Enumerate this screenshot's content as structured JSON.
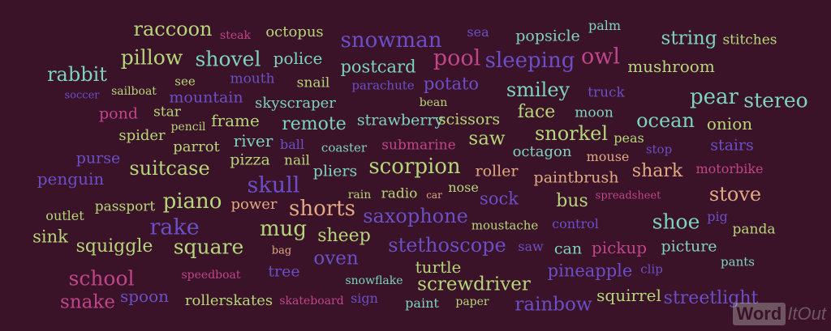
{
  "colors": {
    "background": "#3a1328",
    "green": "#b5d67a",
    "teal": "#7dd3c0",
    "purple": "#6a4fc7",
    "magenta": "#c0458a",
    "peach": "#e0a983"
  },
  "logo": {
    "part1": "Word",
    "part2": "ItOut"
  },
  "words": [
    {
      "t": "raccoon",
      "c": "green"
    },
    {
      "t": "steak",
      "c": "magenta"
    },
    {
      "t": "octopus",
      "c": "green"
    },
    {
      "t": "snowman",
      "c": "purple"
    },
    {
      "t": "sea",
      "c": "purple"
    },
    {
      "t": "popsicle",
      "c": "teal"
    },
    {
      "t": "palm",
      "c": "teal"
    },
    {
      "t": "string",
      "c": "teal"
    },
    {
      "t": "stitches",
      "c": "green"
    },
    {
      "t": "pillow",
      "c": "green"
    },
    {
      "t": "shovel",
      "c": "teal"
    },
    {
      "t": "police",
      "c": "teal"
    },
    {
      "t": "pool",
      "c": "magenta"
    },
    {
      "t": "sleeping",
      "c": "purple"
    },
    {
      "t": "owl",
      "c": "magenta"
    },
    {
      "t": "postcard",
      "c": "teal"
    },
    {
      "t": "mushroom",
      "c": "green"
    },
    {
      "t": "rabbit",
      "c": "teal"
    },
    {
      "t": "mouth",
      "c": "purple"
    },
    {
      "t": "snail",
      "c": "green"
    },
    {
      "t": "potato",
      "c": "purple"
    },
    {
      "t": "sailboat",
      "c": "green"
    },
    {
      "t": "see",
      "c": "green"
    },
    {
      "t": "parachute",
      "c": "purple"
    },
    {
      "t": "smiley",
      "c": "teal"
    },
    {
      "t": "truck",
      "c": "purple"
    },
    {
      "t": "soccer",
      "c": "purple"
    },
    {
      "t": "mountain",
      "c": "purple"
    },
    {
      "t": "skyscraper",
      "c": "teal"
    },
    {
      "t": "bean",
      "c": "green"
    },
    {
      "t": "pear",
      "c": "teal"
    },
    {
      "t": "stereo",
      "c": "teal"
    },
    {
      "t": "pond",
      "c": "magenta"
    },
    {
      "t": "star",
      "c": "green"
    },
    {
      "t": "face",
      "c": "green"
    },
    {
      "t": "moon",
      "c": "teal"
    },
    {
      "t": "frame",
      "c": "green"
    },
    {
      "t": "strawberry",
      "c": "teal"
    },
    {
      "t": "scissors",
      "c": "green"
    },
    {
      "t": "ocean",
      "c": "teal"
    },
    {
      "t": "onion",
      "c": "green"
    },
    {
      "t": "pencil",
      "c": "green"
    },
    {
      "t": "remote",
      "c": "teal"
    },
    {
      "t": "spider",
      "c": "green"
    },
    {
      "t": "river",
      "c": "teal"
    },
    {
      "t": "saw",
      "c": "green"
    },
    {
      "t": "snorkel",
      "c": "green"
    },
    {
      "t": "peas",
      "c": "green"
    },
    {
      "t": "parrot",
      "c": "green"
    },
    {
      "t": "ball",
      "c": "purple"
    },
    {
      "t": "coaster",
      "c": "teal"
    },
    {
      "t": "submarine",
      "c": "magenta"
    },
    {
      "t": "octagon",
      "c": "teal"
    },
    {
      "t": "stop",
      "c": "purple"
    },
    {
      "t": "stairs",
      "c": "purple"
    },
    {
      "t": "purse",
      "c": "purple"
    },
    {
      "t": "pizza",
      "c": "green"
    },
    {
      "t": "nail",
      "c": "green"
    },
    {
      "t": "mouse",
      "c": "peach"
    },
    {
      "t": "suitcase",
      "c": "green"
    },
    {
      "t": "pliers",
      "c": "teal"
    },
    {
      "t": "scorpion",
      "c": "green"
    },
    {
      "t": "roller",
      "c": "peach"
    },
    {
      "t": "shark",
      "c": "peach"
    },
    {
      "t": "motorbike",
      "c": "magenta"
    },
    {
      "t": "penguin",
      "c": "purple"
    },
    {
      "t": "skull",
      "c": "purple"
    },
    {
      "t": "paintbrush",
      "c": "peach"
    },
    {
      "t": "rain",
      "c": "green"
    },
    {
      "t": "radio",
      "c": "green"
    },
    {
      "t": "car",
      "c": "peach"
    },
    {
      "t": "nose",
      "c": "green"
    },
    {
      "t": "sock",
      "c": "purple"
    },
    {
      "t": "bus",
      "c": "green"
    },
    {
      "t": "spreadsheet",
      "c": "magenta"
    },
    {
      "t": "stove",
      "c": "peach"
    },
    {
      "t": "piano",
      "c": "green"
    },
    {
      "t": "power",
      "c": "peach"
    },
    {
      "t": "shorts",
      "c": "peach"
    },
    {
      "t": "passport",
      "c": "green"
    },
    {
      "t": "outlet",
      "c": "green"
    },
    {
      "t": "saxophone",
      "c": "purple"
    },
    {
      "t": "shoe",
      "c": "teal"
    },
    {
      "t": "pig",
      "c": "purple"
    },
    {
      "t": "rake",
      "c": "purple"
    },
    {
      "t": "mug",
      "c": "green"
    },
    {
      "t": "moustache",
      "c": "green"
    },
    {
      "t": "control",
      "c": "purple"
    },
    {
      "t": "panda",
      "c": "green"
    },
    {
      "t": "sink",
      "c": "green"
    },
    {
      "t": "sheep",
      "c": "green"
    },
    {
      "t": "squiggle",
      "c": "green"
    },
    {
      "t": "square",
      "c": "green"
    },
    {
      "t": "stethoscope",
      "c": "purple"
    },
    {
      "t": "saw",
      "c": "purple"
    },
    {
      "t": "can",
      "c": "teal"
    },
    {
      "t": "pickup",
      "c": "magenta"
    },
    {
      "t": "picture",
      "c": "teal"
    },
    {
      "t": "bag",
      "c": "peach"
    },
    {
      "t": "oven",
      "c": "purple"
    },
    {
      "t": "pants",
      "c": "teal"
    },
    {
      "t": "school",
      "c": "magenta"
    },
    {
      "t": "speedboat",
      "c": "magenta"
    },
    {
      "t": "tree",
      "c": "purple"
    },
    {
      "t": "turtle",
      "c": "green"
    },
    {
      "t": "pineapple",
      "c": "purple"
    },
    {
      "t": "clip",
      "c": "purple"
    },
    {
      "t": "snowflake",
      "c": "teal"
    },
    {
      "t": "screwdriver",
      "c": "green"
    },
    {
      "t": "snake",
      "c": "magenta"
    },
    {
      "t": "spoon",
      "c": "purple"
    },
    {
      "t": "rollerskates",
      "c": "green"
    },
    {
      "t": "skateboard",
      "c": "magenta"
    },
    {
      "t": "sign",
      "c": "purple"
    },
    {
      "t": "paint",
      "c": "teal"
    },
    {
      "t": "paper",
      "c": "green"
    },
    {
      "t": "squirrel",
      "c": "green"
    },
    {
      "t": "streetlight",
      "c": "purple"
    },
    {
      "t": "rainbow",
      "c": "purple"
    }
  ]
}
